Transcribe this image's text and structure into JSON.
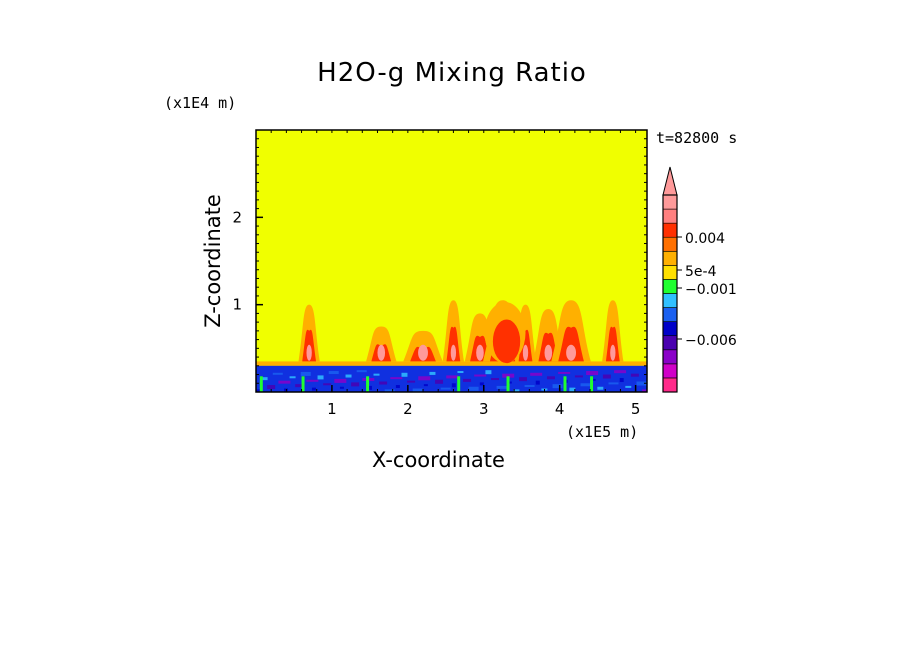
{
  "chart_data": {
    "type": "heatmap",
    "title": "H2O-g Mixing Ratio",
    "xlabel": "X-coordinate",
    "ylabel": "Z-coordinate",
    "x_scale_label": "(x1E5 m)",
    "z_scale_label": "(x1E4 m)",
    "time_label": "t=82800 s",
    "xlim": [
      0,
      5.15
    ],
    "ylim": [
      0,
      3.0
    ],
    "x_ticks": [
      "1",
      "2",
      "3",
      "4",
      "5"
    ],
    "y_ticks": [
      "1",
      "2"
    ],
    "background_color": "#f0ff00",
    "colorbar": {
      "labels": [
        "0.004",
        "5e-4",
        "−0.001",
        "−0.006"
      ],
      "colors": [
        "#ff2a8a",
        "#d000c8",
        "#8a00c8",
        "#4a00b0",
        "#0000c8",
        "#1a60f0",
        "#30c0ff",
        "#20ff30",
        "#ffe000",
        "#ffb000",
        "#ff7000",
        "#ff3000",
        "#ff8080",
        "#ff9a9a"
      ]
    },
    "features": {
      "surface_layer_top_z": 0.3,
      "surface_layer_color": "#1030e0",
      "plume_x_centers": [
        0.7,
        1.65,
        2.2,
        2.6,
        2.95,
        3.25,
        3.55,
        3.85,
        4.15,
        4.7
      ]
    }
  }
}
